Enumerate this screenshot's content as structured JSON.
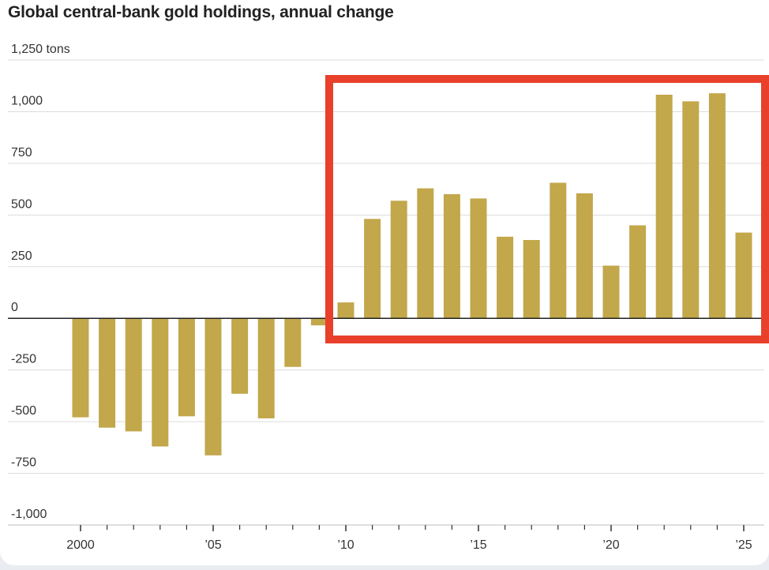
{
  "chart_data": {
    "type": "bar",
    "title": "Global central-bank gold holdings, annual change",
    "ylabel": "tons",
    "ylim": [
      -1000,
      1250
    ],
    "yticks": [
      1250,
      1000,
      750,
      500,
      250,
      0,
      -250,
      -500,
      -750,
      -1000
    ],
    "ytick_labels": [
      "1,250 tons",
      "1,000",
      "750",
      "500",
      "250",
      "0",
      "-250",
      "-500",
      "-750",
      "-1,000"
    ],
    "x": [
      2000,
      2001,
      2002,
      2003,
      2004,
      2005,
      2006,
      2007,
      2008,
      2009,
      2010,
      2011,
      2012,
      2013,
      2014,
      2015,
      2016,
      2017,
      2018,
      2019,
      2020,
      2021,
      2022,
      2023,
      2024,
      2025
    ],
    "values": [
      -479,
      -529,
      -547,
      -620,
      -474,
      -663,
      -365,
      -484,
      -235,
      -34,
      77,
      481,
      569,
      629,
      601,
      580,
      395,
      379,
      656,
      605,
      255,
      450,
      1082,
      1050,
      1089,
      415
    ],
    "xtick_years": [
      2000,
      2005,
      2010,
      2015,
      2020,
      2025
    ],
    "xtick_labels": [
      "2000",
      "’05",
      "’10",
      "’15",
      "’20",
      "’25"
    ],
    "bar_color": "#c2a74b",
    "highlight": {
      "from_year": 2010,
      "to_year": 2025,
      "color": "#e8402a"
    }
  }
}
